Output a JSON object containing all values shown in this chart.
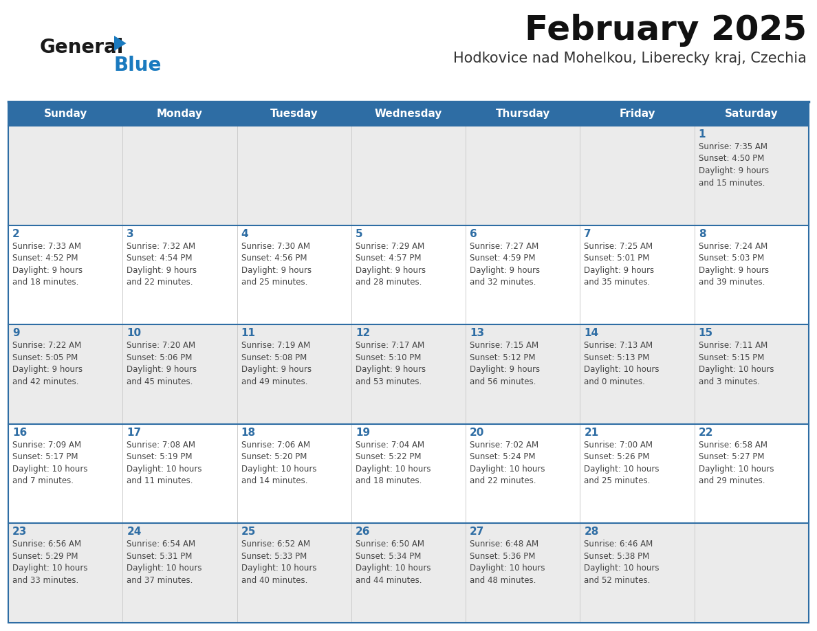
{
  "title": "February 2025",
  "subtitle": "Hodkovice nad Mohelkou, Liberecky kraj, Czechia",
  "days_of_week": [
    "Sunday",
    "Monday",
    "Tuesday",
    "Wednesday",
    "Thursday",
    "Friday",
    "Saturday"
  ],
  "header_bg": "#2E6DA4",
  "header_text": "#FFFFFF",
  "cell_bg_odd": "#EBEBEB",
  "cell_bg_even": "#FFFFFF",
  "border_color": "#2E6DA4",
  "text_color": "#444444",
  "day_num_color": "#2E6DA4",
  "logo_general_color": "#1a1a1a",
  "logo_blue_color": "#1a7abf",
  "logo_triangle_color": "#1a7abf",
  "title_color": "#111111",
  "subtitle_color": "#333333",
  "weeks": [
    [
      {
        "day": null,
        "info": null
      },
      {
        "day": null,
        "info": null
      },
      {
        "day": null,
        "info": null
      },
      {
        "day": null,
        "info": null
      },
      {
        "day": null,
        "info": null
      },
      {
        "day": null,
        "info": null
      },
      {
        "day": 1,
        "info": "Sunrise: 7:35 AM\nSunset: 4:50 PM\nDaylight: 9 hours\nand 15 minutes."
      }
    ],
    [
      {
        "day": 2,
        "info": "Sunrise: 7:33 AM\nSunset: 4:52 PM\nDaylight: 9 hours\nand 18 minutes."
      },
      {
        "day": 3,
        "info": "Sunrise: 7:32 AM\nSunset: 4:54 PM\nDaylight: 9 hours\nand 22 minutes."
      },
      {
        "day": 4,
        "info": "Sunrise: 7:30 AM\nSunset: 4:56 PM\nDaylight: 9 hours\nand 25 minutes."
      },
      {
        "day": 5,
        "info": "Sunrise: 7:29 AM\nSunset: 4:57 PM\nDaylight: 9 hours\nand 28 minutes."
      },
      {
        "day": 6,
        "info": "Sunrise: 7:27 AM\nSunset: 4:59 PM\nDaylight: 9 hours\nand 32 minutes."
      },
      {
        "day": 7,
        "info": "Sunrise: 7:25 AM\nSunset: 5:01 PM\nDaylight: 9 hours\nand 35 minutes."
      },
      {
        "day": 8,
        "info": "Sunrise: 7:24 AM\nSunset: 5:03 PM\nDaylight: 9 hours\nand 39 minutes."
      }
    ],
    [
      {
        "day": 9,
        "info": "Sunrise: 7:22 AM\nSunset: 5:05 PM\nDaylight: 9 hours\nand 42 minutes."
      },
      {
        "day": 10,
        "info": "Sunrise: 7:20 AM\nSunset: 5:06 PM\nDaylight: 9 hours\nand 45 minutes."
      },
      {
        "day": 11,
        "info": "Sunrise: 7:19 AM\nSunset: 5:08 PM\nDaylight: 9 hours\nand 49 minutes."
      },
      {
        "day": 12,
        "info": "Sunrise: 7:17 AM\nSunset: 5:10 PM\nDaylight: 9 hours\nand 53 minutes."
      },
      {
        "day": 13,
        "info": "Sunrise: 7:15 AM\nSunset: 5:12 PM\nDaylight: 9 hours\nand 56 minutes."
      },
      {
        "day": 14,
        "info": "Sunrise: 7:13 AM\nSunset: 5:13 PM\nDaylight: 10 hours\nand 0 minutes."
      },
      {
        "day": 15,
        "info": "Sunrise: 7:11 AM\nSunset: 5:15 PM\nDaylight: 10 hours\nand 3 minutes."
      }
    ],
    [
      {
        "day": 16,
        "info": "Sunrise: 7:09 AM\nSunset: 5:17 PM\nDaylight: 10 hours\nand 7 minutes."
      },
      {
        "day": 17,
        "info": "Sunrise: 7:08 AM\nSunset: 5:19 PM\nDaylight: 10 hours\nand 11 minutes."
      },
      {
        "day": 18,
        "info": "Sunrise: 7:06 AM\nSunset: 5:20 PM\nDaylight: 10 hours\nand 14 minutes."
      },
      {
        "day": 19,
        "info": "Sunrise: 7:04 AM\nSunset: 5:22 PM\nDaylight: 10 hours\nand 18 minutes."
      },
      {
        "day": 20,
        "info": "Sunrise: 7:02 AM\nSunset: 5:24 PM\nDaylight: 10 hours\nand 22 minutes."
      },
      {
        "day": 21,
        "info": "Sunrise: 7:00 AM\nSunset: 5:26 PM\nDaylight: 10 hours\nand 25 minutes."
      },
      {
        "day": 22,
        "info": "Sunrise: 6:58 AM\nSunset: 5:27 PM\nDaylight: 10 hours\nand 29 minutes."
      }
    ],
    [
      {
        "day": 23,
        "info": "Sunrise: 6:56 AM\nSunset: 5:29 PM\nDaylight: 10 hours\nand 33 minutes."
      },
      {
        "day": 24,
        "info": "Sunrise: 6:54 AM\nSunset: 5:31 PM\nDaylight: 10 hours\nand 37 minutes."
      },
      {
        "day": 25,
        "info": "Sunrise: 6:52 AM\nSunset: 5:33 PM\nDaylight: 10 hours\nand 40 minutes."
      },
      {
        "day": 26,
        "info": "Sunrise: 6:50 AM\nSunset: 5:34 PM\nDaylight: 10 hours\nand 44 minutes."
      },
      {
        "day": 27,
        "info": "Sunrise: 6:48 AM\nSunset: 5:36 PM\nDaylight: 10 hours\nand 48 minutes."
      },
      {
        "day": 28,
        "info": "Sunrise: 6:46 AM\nSunset: 5:38 PM\nDaylight: 10 hours\nand 52 minutes."
      },
      {
        "day": null,
        "info": null
      }
    ]
  ]
}
